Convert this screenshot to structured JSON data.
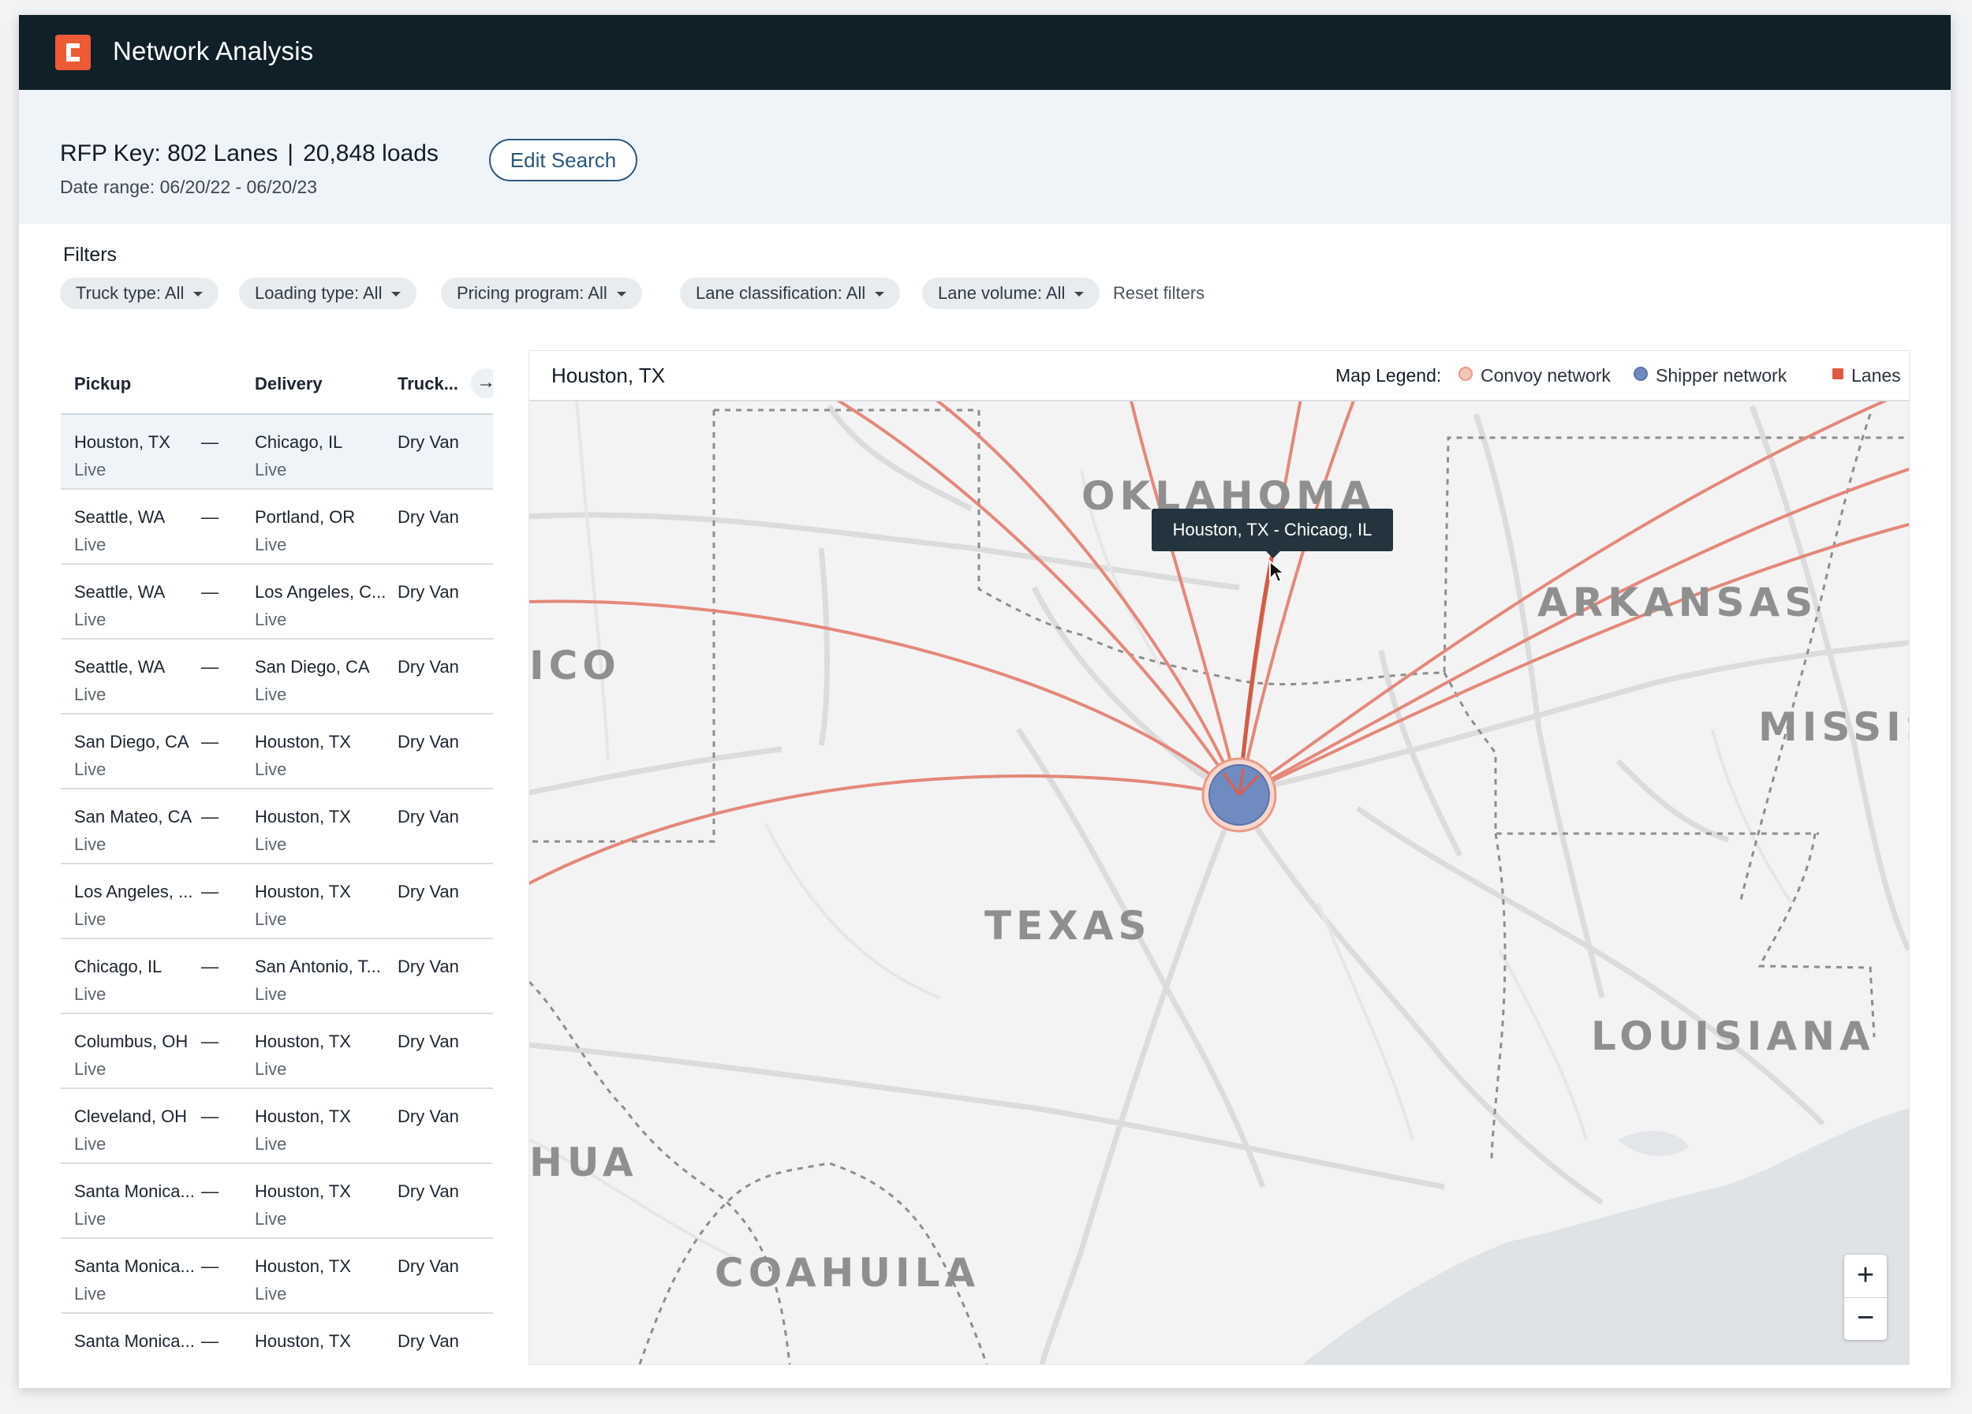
{
  "app": {
    "title": "Network Analysis",
    "logo_letter": "C"
  },
  "summary": {
    "rfp_key": "RFP Key: 802 Lanes",
    "separator": "|",
    "loads": "20,848 loads",
    "date_range": "Date range: 06/20/22 - 06/20/23",
    "edit_button": "Edit Search"
  },
  "filters": {
    "title": "Filters",
    "chips": [
      "Truck type: All",
      "Loading type: All",
      "Pricing program: All",
      "Lane classification: All",
      "Lane volume: All"
    ],
    "reset": "Reset filters"
  },
  "table": {
    "headers": {
      "pickup": "Pickup",
      "delivery": "Delivery",
      "truck": "Truck..."
    },
    "expand_icon": "arrow-right-icon",
    "rows": [
      {
        "pickup": "Houston, TX",
        "pickup_sub": "Live",
        "dash": "—",
        "delivery": "Chicago, IL",
        "delivery_sub": "Live",
        "truck": "Dry Van"
      },
      {
        "pickup": "Seattle, WA",
        "pickup_sub": "Live",
        "dash": "—",
        "delivery": "Portland, OR",
        "delivery_sub": "Live",
        "truck": "Dry Van"
      },
      {
        "pickup": "Seattle, WA",
        "pickup_sub": "Live",
        "dash": "—",
        "delivery": "Los Angeles, C...",
        "delivery_sub": "Live",
        "truck": "Dry Van"
      },
      {
        "pickup": "Seattle, WA",
        "pickup_sub": "Live",
        "dash": "—",
        "delivery": "San Diego, CA",
        "delivery_sub": "Live",
        "truck": "Dry Van"
      },
      {
        "pickup": "San Diego, CA",
        "pickup_sub": "Live",
        "dash": "—",
        "delivery": "Houston, TX",
        "delivery_sub": "Live",
        "truck": "Dry Van"
      },
      {
        "pickup": "San Mateo, CA",
        "pickup_sub": "Live",
        "dash": "—",
        "delivery": "Houston, TX",
        "delivery_sub": "Live",
        "truck": "Dry Van"
      },
      {
        "pickup": "Los Angeles, ...",
        "pickup_sub": "Live",
        "dash": "—",
        "delivery": "Houston, TX",
        "delivery_sub": "Live",
        "truck": "Dry Van"
      },
      {
        "pickup": "Chicago, IL",
        "pickup_sub": "Live",
        "dash": "—",
        "delivery": "San Antonio, T...",
        "delivery_sub": "Live",
        "truck": "Dry Van"
      },
      {
        "pickup": "Columbus, OH",
        "pickup_sub": "Live",
        "dash": "—",
        "delivery": "Houston, TX",
        "delivery_sub": "Live",
        "truck": "Dry Van"
      },
      {
        "pickup": "Cleveland, OH",
        "pickup_sub": "Live",
        "dash": "—",
        "delivery": "Houston, TX",
        "delivery_sub": "Live",
        "truck": "Dry Van"
      },
      {
        "pickup": "Santa Monica...",
        "pickup_sub": "Live",
        "dash": "—",
        "delivery": "Houston, TX",
        "delivery_sub": "Live",
        "truck": "Dry Van"
      },
      {
        "pickup": "Santa Monica...",
        "pickup_sub": "Live",
        "dash": "—",
        "delivery": "Houston, TX",
        "delivery_sub": "Live",
        "truck": "Dry Van"
      },
      {
        "pickup": "Santa Monica...",
        "pickup_sub": "",
        "dash": "—",
        "delivery": "Houston, TX",
        "delivery_sub": "",
        "truck": "Dry Van"
      }
    ]
  },
  "map": {
    "title": "Houston, TX",
    "legend_label": "Map Legend:",
    "legend": [
      {
        "label": "Convoy network",
        "color": "#f4c6b8",
        "border": "#e89a86"
      },
      {
        "label": "Shipper network",
        "color": "#6f8bbf",
        "border": "#5a74a8"
      },
      {
        "label": "Lanes",
        "color": "#de5a45",
        "border": "#de5a45"
      }
    ],
    "tooltip": "Houston, TX  -  Chicaog, IL",
    "state_labels": {
      "oklahoma": "OKLAHOMA",
      "arkansas": "ARKANSAS",
      "mississippi": "MISSISS",
      "mexico": "ICO",
      "texas": "TEXAS",
      "louisiana": "LOUISIANA",
      "chihuahua": "HUA",
      "coahuila": "COAHUILA"
    },
    "zoom_in": "+",
    "zoom_out": "−",
    "lane_color": "#e07a6c",
    "hub_color": "#6f8bbf"
  }
}
